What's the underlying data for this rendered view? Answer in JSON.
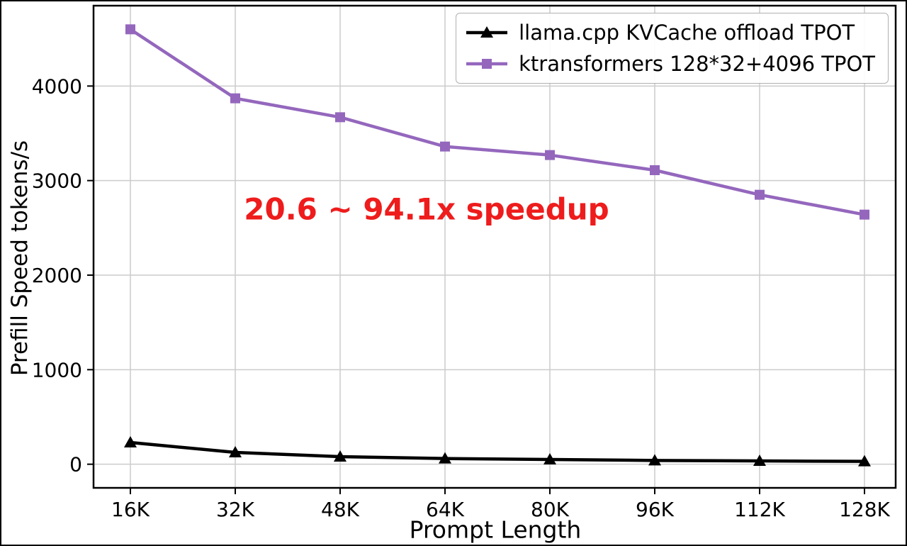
{
  "figure": {
    "background": "#ffffff",
    "frame_color": "#000000",
    "grid_color": "#cccccc"
  },
  "chart_data": {
    "type": "line",
    "title": "",
    "xlabel": "Prompt Length",
    "ylabel": "Prefill Speed tokens/s",
    "categories": [
      "16K",
      "32K",
      "48K",
      "64K",
      "80K",
      "96K",
      "112K",
      "128K"
    ],
    "series": [
      {
        "name": "llama.cpp KVCache offload TPOT",
        "color": "#000000",
        "marker": "triangle",
        "values": [
          230,
          125,
          80,
          60,
          50,
          40,
          35,
          30
        ]
      },
      {
        "name": "ktransformers 128*32+4096 TPOT",
        "color": "#9467bd",
        "marker": "square",
        "values": [
          4600,
          3870,
          3670,
          3360,
          3270,
          3110,
          2850,
          2640
        ]
      }
    ],
    "y_ticks": [
      0,
      1000,
      2000,
      3000,
      4000
    ],
    "ylim": [
      -250,
      4850
    ],
    "grid": true,
    "legend_position": "top-right",
    "annotation": {
      "text": "20.6 ~ 94.1x speedup",
      "color": "#ee1c1c"
    }
  }
}
